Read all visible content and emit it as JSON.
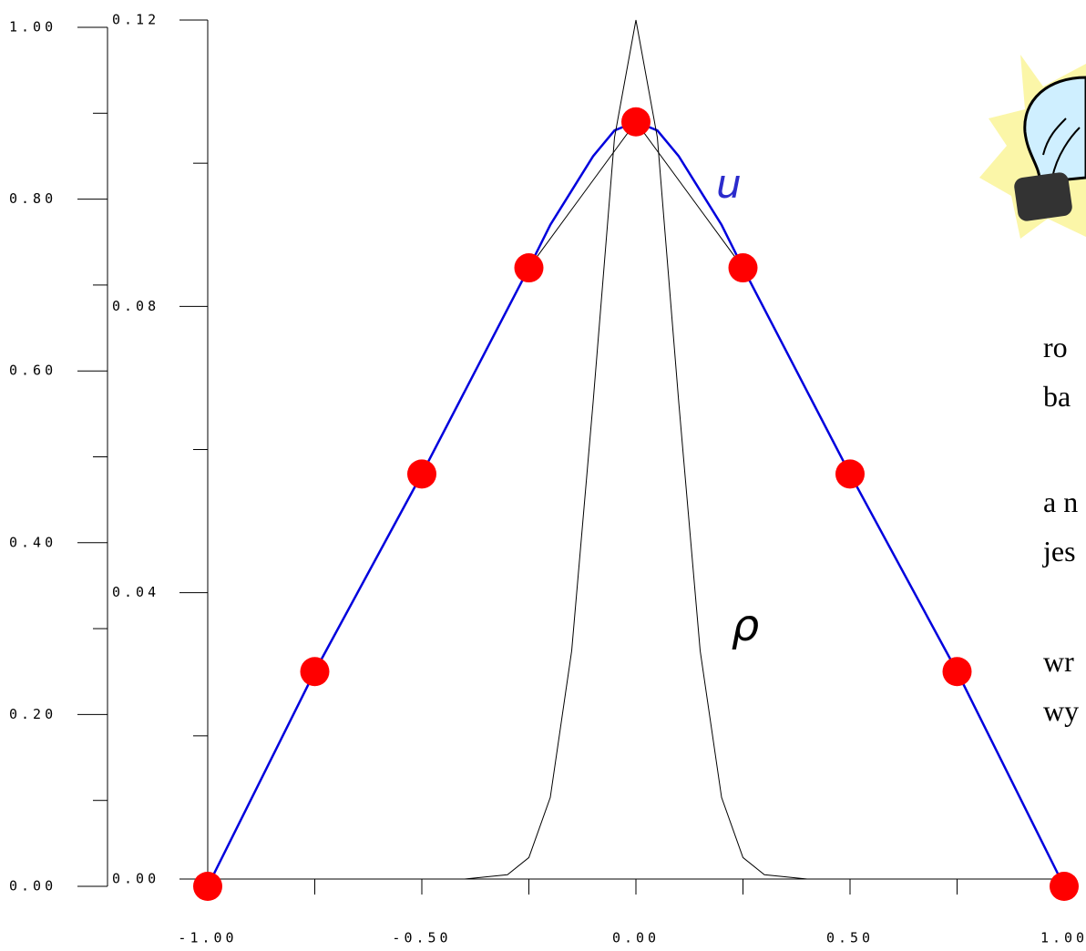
{
  "chart_data": {
    "type": "line",
    "xlim": [
      -1,
      1
    ],
    "xticks": [
      {
        "value": -1,
        "label": "-1.00"
      },
      {
        "value": -0.5,
        "label": "-0.50"
      },
      {
        "value": 0,
        "label": "0.00"
      },
      {
        "value": 0.5,
        "label": "0.50"
      },
      {
        "value": 1,
        "label": "1.00"
      }
    ],
    "xminor": [
      -0.75,
      -0.25,
      0.25,
      0.75
    ],
    "ylim": [
      0,
      1
    ],
    "yticks": [
      {
        "value": 0,
        "label": "0.00"
      },
      {
        "value": 0.2,
        "label": "0.20"
      },
      {
        "value": 0.4,
        "label": "0.40"
      },
      {
        "value": 0.6,
        "label": "0.60"
      },
      {
        "value": 0.8,
        "label": "0.80"
      },
      {
        "value": 1,
        "label": "1.00"
      }
    ],
    "yminor": [
      0.1,
      0.3,
      0.5,
      0.7,
      0.9
    ],
    "y2lim": [
      0,
      0.12
    ],
    "y2ticks": [
      {
        "value": 0,
        "label": "0.00"
      },
      {
        "value": 0.04,
        "label": "0.04"
      },
      {
        "value": 0.08,
        "label": "0.08"
      },
      {
        "value": 0.12,
        "label": "0.12"
      }
    ],
    "y2minor": [
      0.02,
      0.06,
      0.1
    ],
    "series": [
      {
        "color": "#000000",
        "marker_color": "#ff0000",
        "x": [
          -1,
          -0.75,
          -0.5,
          -0.25,
          0,
          0.25,
          0.5,
          0.75,
          1
        ],
        "values": [
          0,
          0.25,
          0.48,
          0.72,
          0.89,
          0.72,
          0.48,
          0.25,
          0
        ]
      },
      {
        "color": "#0000dd",
        "x": [
          -1,
          -0.75,
          -0.5,
          -0.25,
          -0.2,
          -0.15,
          -0.1,
          -0.05,
          0,
          0.05,
          0.1,
          0.15,
          0.2,
          0.25,
          0.5,
          0.75,
          1
        ],
        "values": [
          0,
          0.25,
          0.48,
          0.72,
          0.77,
          0.81,
          0.85,
          0.88,
          0.89,
          0.88,
          0.85,
          0.81,
          0.77,
          0.72,
          0.48,
          0.25,
          0
        ]
      },
      {
        "color": "#000000",
        "axis": "y2",
        "x": [
          -1,
          -0.4,
          -0.3,
          -0.25,
          -0.2,
          -0.15,
          -0.1,
          -0.05,
          0,
          0.05,
          0.1,
          0.15,
          0.2,
          0.25,
          0.3,
          0.4,
          1
        ],
        "values": [
          0,
          0,
          0.0006,
          0.003,
          0.0114,
          0.0319,
          0.0666,
          0.1036,
          0.12,
          0.1036,
          0.0666,
          0.0319,
          0.0114,
          0.003,
          0.0006,
          0,
          0
        ]
      }
    ],
    "annotations": [
      {
        "text": "u",
        "color": "#2b2bcc"
      },
      {
        "text": "ρ",
        "color": "#000000"
      }
    ],
    "side_text": [
      "ro",
      "ba",
      "a n",
      "jes",
      "wr",
      "wy"
    ]
  }
}
